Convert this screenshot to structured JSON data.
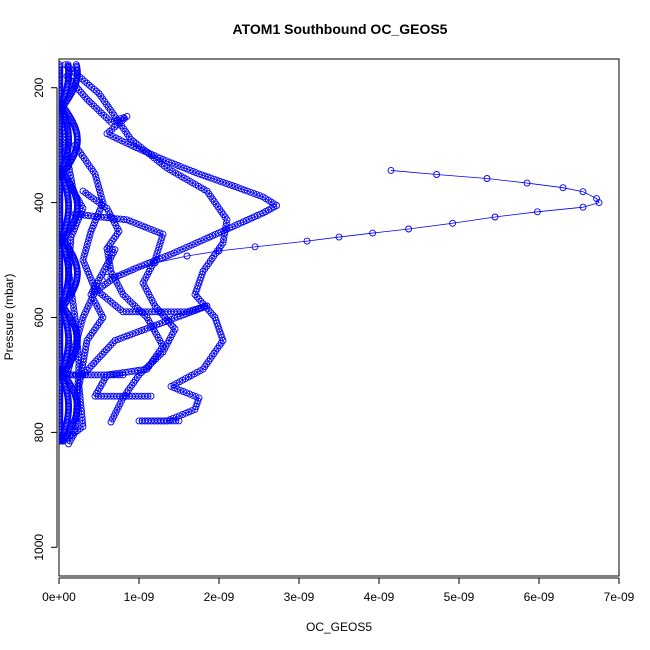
{
  "chart_data": {
    "type": "scatter",
    "title": "ATOM1 Southbound OC_GEOS5",
    "xlabel": "OC_GEOS5",
    "ylabel": "Pressure (mbar)",
    "xlim": [
      0,
      7e-09
    ],
    "ylim": [
      1050,
      150
    ],
    "y_inverted": true,
    "x_ticks": [
      0,
      1e-09,
      2e-09,
      3e-09,
      4e-09,
      5e-09,
      6e-09,
      7e-09
    ],
    "x_tick_labels": [
      "0e+00",
      "1e-09",
      "2e-09",
      "3e-09",
      "4e-09",
      "5e-09",
      "6e-09",
      "7e-09"
    ],
    "y_ticks": [
      200,
      400,
      600,
      800,
      1000
    ],
    "y_tick_labels": [
      "200",
      "400",
      "600",
      "800",
      "1000"
    ],
    "grid": false,
    "marker": "open-circle",
    "series_color": "#0000ff",
    "series": [
      {
        "values": [
          [
            4.15e-09,
            344
          ],
          [
            4.72e-09,
            351
          ],
          [
            5.35e-09,
            358
          ],
          [
            5.85e-09,
            366
          ],
          [
            6.3e-09,
            374
          ],
          [
            6.55e-09,
            381
          ],
          [
            6.72e-09,
            393
          ],
          [
            6.75e-09,
            400
          ],
          [
            6.55e-09,
            408
          ],
          [
            5.98e-09,
            416
          ],
          [
            5.45e-09,
            425
          ],
          [
            4.92e-09,
            436
          ],
          [
            4.37e-09,
            446
          ],
          [
            3.92e-09,
            453
          ],
          [
            3.5e-09,
            460
          ],
          [
            3.1e-09,
            467
          ],
          [
            2.45e-09,
            477
          ],
          [
            2e-09,
            484
          ],
          [
            1.6e-09,
            493
          ],
          [
            1.2e-09,
            505
          ],
          [
            6e-10,
            530
          ]
        ]
      },
      {
        "values": [
          [
            1e-10,
            180
          ],
          [
            3.5e-10,
            220
          ],
          [
            6.5e-10,
            260
          ],
          [
            8.5e-10,
            250
          ],
          [
            6e-10,
            280
          ],
          [
            9e-10,
            300
          ],
          [
            1.3e-09,
            325
          ],
          [
            1.75e-09,
            350
          ],
          [
            2.2e-09,
            372
          ],
          [
            2.55e-09,
            390
          ],
          [
            2.72e-09,
            405
          ],
          [
            2.55e-09,
            418
          ],
          [
            2.2e-09,
            440
          ],
          [
            1.85e-09,
            462
          ],
          [
            1.4e-09,
            490
          ],
          [
            1e-09,
            512
          ],
          [
            7e-10,
            530
          ],
          [
            4.5e-10,
            555
          ],
          [
            3e-10,
            600
          ],
          [
            2e-10,
            650
          ],
          [
            1e-10,
            700
          ]
        ]
      },
      {
        "values": [
          [
            8e-11,
            160
          ],
          [
            5e-10,
            210
          ],
          [
            9e-10,
            290
          ],
          [
            1.35e-09,
            340
          ],
          [
            1.85e-09,
            380
          ],
          [
            2.1e-09,
            430
          ],
          [
            2.05e-09,
            470
          ],
          [
            1.8e-09,
            520
          ],
          [
            1.7e-09,
            560
          ],
          [
            1.95e-09,
            600
          ],
          [
            2.05e-09,
            640
          ],
          [
            1.8e-09,
            690
          ],
          [
            1.4e-09,
            720
          ],
          [
            1.75e-09,
            740
          ],
          [
            1.7e-09,
            760
          ],
          [
            1.35e-09,
            780
          ],
          [
            1e-09,
            780
          ],
          [
            1.5e-09,
            780
          ]
        ]
      },
      {
        "values": [
          [
            2e-10,
            420
          ],
          [
            8.5e-10,
            430
          ],
          [
            1.3e-09,
            455
          ],
          [
            1.2e-09,
            500
          ],
          [
            1.05e-09,
            540
          ],
          [
            1.2e-09,
            580
          ],
          [
            1.45e-09,
            620
          ],
          [
            1.3e-09,
            660
          ],
          [
            1e-09,
            700
          ],
          [
            8e-10,
            740
          ],
          [
            6.5e-10,
            782
          ]
        ]
      },
      {
        "values": [
          [
            3e-10,
            380
          ],
          [
            6e-10,
            410
          ],
          [
            7.5e-10,
            450
          ],
          [
            6e-10,
            480
          ],
          [
            6.5e-10,
            520
          ],
          [
            8e-10,
            560
          ],
          [
            1.1e-09,
            600
          ],
          [
            1.3e-09,
            650
          ],
          [
            1.1e-09,
            690
          ],
          [
            6e-10,
            700
          ],
          [
            4.5e-10,
            737
          ],
          [
            1.15e-09,
            737
          ]
        ]
      },
      {
        "values": [
          [
            2e-10,
            300
          ],
          [
            4.5e-10,
            350
          ],
          [
            5.5e-10,
            400
          ],
          [
            4e-10,
            450
          ],
          [
            3e-10,
            500
          ],
          [
            4.5e-10,
            550
          ],
          [
            8e-10,
            590
          ],
          [
            1.6e-09,
            590
          ],
          [
            1.85e-09,
            580
          ],
          [
            7e-10,
            640
          ],
          [
            3e-10,
            700
          ],
          [
            5e-11,
            700
          ],
          [
            8e-10,
            700
          ]
        ]
      },
      {
        "values": [
          [
            5e-11,
            240
          ],
          [
            1e-10,
            320
          ],
          [
            1.8e-10,
            380
          ],
          [
            3e-10,
            410
          ],
          [
            1.5e-10,
            460
          ],
          [
            1.2e-10,
            520
          ],
          [
            2e-10,
            600
          ],
          [
            2.5e-10,
            680
          ],
          [
            2.2e-10,
            760
          ],
          [
            2e-10,
            800
          ],
          [
            1.2e-10,
            820
          ]
        ]
      },
      {
        "values": [
          [
            6e-10,
            480
          ],
          [
            7e-10,
            482
          ],
          [
            4e-10,
            560
          ],
          [
            5.5e-10,
            600
          ],
          [
            3.5e-10,
            640
          ],
          [
            2.5e-10,
            720
          ],
          [
            3e-10,
            790
          ],
          [
            1e-10,
            810
          ]
        ]
      }
    ]
  }
}
